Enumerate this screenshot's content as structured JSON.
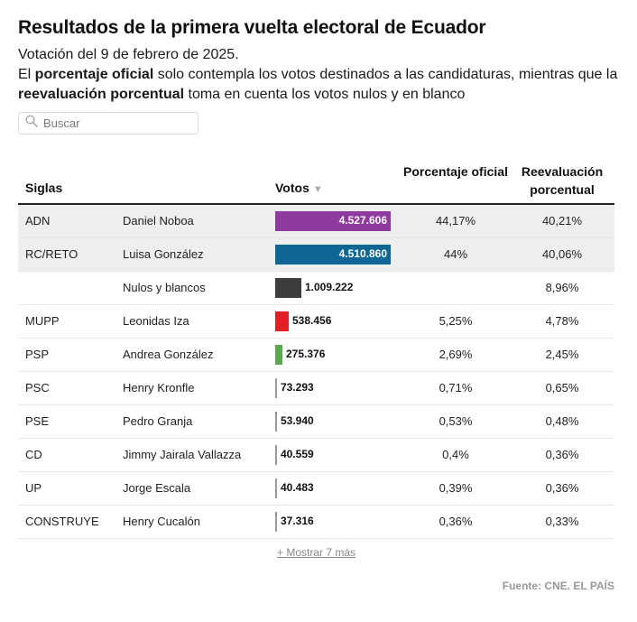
{
  "title": "Resultados de la primera vuelta electoral de Ecuador",
  "subtitle": {
    "line1": "Votación del 9 de febrero de 2025.",
    "p1": "El ",
    "b1": "porcentaje oficial",
    "p2": " solo contempla los votos destinados a las candidaturas, mientras que la ",
    "b2": "reevaluación porcentual",
    "p3": " toma en cuenta los votos nulos y en blanco"
  },
  "search": {
    "placeholder": "Buscar"
  },
  "columns": {
    "siglas": "Siglas",
    "votos": "Votos",
    "sort_arrow": "▼",
    "pct": "Porcentaje oficial",
    "reev": "Reevaluación porcentual"
  },
  "chart_data": {
    "type": "table",
    "title": "Resultados de la primera vuelta electoral de Ecuador",
    "max_votes": 4527606,
    "rows": [
      {
        "siglas": "ADN",
        "candidate": "Daniel Noboa",
        "votes": 4527606,
        "votes_label": "4.527.606",
        "pct": "44,17%",
        "reev": "40,21%",
        "color": "#8e3a9e",
        "highlight": true
      },
      {
        "siglas": "RC/RETO",
        "candidate": "Luisa González",
        "votes": 4510860,
        "votes_label": "4.510.860",
        "pct": "44%",
        "reev": "40,06%",
        "color": "#0d6694",
        "highlight": true
      },
      {
        "siglas": "",
        "candidate": "Nulos y blancos",
        "votes": 1009222,
        "votes_label": "1.009.222",
        "pct": "",
        "reev": "8,96%",
        "color": "#3d3d3d",
        "highlight": false
      },
      {
        "siglas": "MUPP",
        "candidate": "Leonidas Iza",
        "votes": 538456,
        "votes_label": "538.456",
        "pct": "5,25%",
        "reev": "4,78%",
        "color": "#e31e24",
        "highlight": false
      },
      {
        "siglas": "PSP",
        "candidate": "Andrea González",
        "votes": 275376,
        "votes_label": "275.376",
        "pct": "2,69%",
        "reev": "2,45%",
        "color": "#5aa84f",
        "highlight": false
      },
      {
        "siglas": "PSC",
        "candidate": "Henry Kronfle",
        "votes": 73293,
        "votes_label": "73.293",
        "pct": "0,71%",
        "reev": "0,65%",
        "color": "#999999",
        "highlight": false
      },
      {
        "siglas": "PSE",
        "candidate": "Pedro Granja",
        "votes": 53940,
        "votes_label": "53.940",
        "pct": "0,53%",
        "reev": "0,48%",
        "color": "#999999",
        "highlight": false
      },
      {
        "siglas": "CD",
        "candidate": "Jimmy Jairala Vallazza",
        "votes": 40559,
        "votes_label": "40.559",
        "pct": "0,4%",
        "reev": "0,36%",
        "color": "#999999",
        "highlight": false
      },
      {
        "siglas": "UP",
        "candidate": "Jorge Escala",
        "votes": 40483,
        "votes_label": "40.483",
        "pct": "0,39%",
        "reev": "0,36%",
        "color": "#999999",
        "highlight": false
      },
      {
        "siglas": "CONSTRUYE",
        "candidate": "Henry Cucalón",
        "votes": 37316,
        "votes_label": "37.316",
        "pct": "0,36%",
        "reev": "0,33%",
        "color": "#999999",
        "highlight": false
      }
    ]
  },
  "more_link": "+ Mostrar 7 más",
  "source": "Fuente: CNE. EL PAÍS"
}
